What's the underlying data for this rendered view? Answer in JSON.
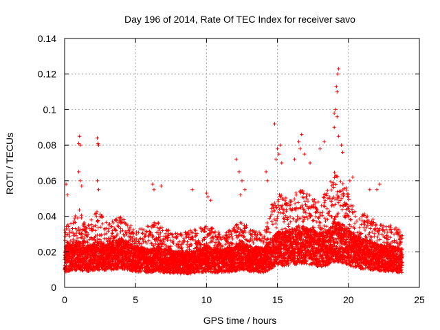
{
  "chart_data": {
    "type": "scatter",
    "title": "Day 196 of 2014, Rate Of TEC Index for receiver savo",
    "xlabel": "GPS time / hours",
    "ylabel": "ROTI / TECUs",
    "xlim": [
      0,
      25
    ],
    "ylim": [
      0,
      0.14
    ],
    "xticks": [
      0,
      5,
      10,
      15,
      20,
      25
    ],
    "xtick_labels": [
      "0",
      "5",
      "10",
      "15",
      "20",
      "25"
    ],
    "yticks": [
      0,
      0.02,
      0.04,
      0.06,
      0.08,
      0.1,
      0.12,
      0.14
    ],
    "ytick_labels": [
      "0",
      "0.02",
      "0.04",
      "0.06",
      "0.08",
      "0.1",
      "0.12",
      "0.14"
    ],
    "grid": true,
    "marker": "+",
    "series": [
      {
        "name": "ROTI",
        "color": "#ff0000",
        "density_profile": {
          "hours": [
            0,
            0.5,
            1.0,
            1.5,
            2.0,
            2.5,
            3.0,
            3.5,
            4.0,
            5.0,
            6.0,
            6.5,
            7.0,
            8.0,
            9.0,
            10.0,
            10.5,
            11.0,
            12.0,
            12.5,
            13.0,
            14.0,
            14.5,
            15.0,
            15.5,
            16.0,
            16.5,
            17.0,
            17.5,
            18.0,
            18.5,
            19.0,
            19.5,
            20.0,
            20.5,
            21.0,
            22.0,
            23.0,
            23.8
          ],
          "median": [
            0.016,
            0.017,
            0.018,
            0.016,
            0.017,
            0.018,
            0.017,
            0.018,
            0.019,
            0.016,
            0.015,
            0.016,
            0.015,
            0.014,
            0.014,
            0.016,
            0.015,
            0.015,
            0.016,
            0.018,
            0.016,
            0.015,
            0.018,
            0.022,
            0.022,
            0.023,
            0.024,
            0.024,
            0.022,
            0.021,
            0.022,
            0.026,
            0.025,
            0.023,
            0.02,
            0.019,
            0.017,
            0.016,
            0.015
          ],
          "upper": [
            0.035,
            0.036,
            0.045,
            0.034,
            0.04,
            0.045,
            0.036,
            0.038,
            0.04,
            0.032,
            0.035,
            0.038,
            0.034,
            0.03,
            0.033,
            0.035,
            0.034,
            0.03,
            0.034,
            0.04,
            0.034,
            0.03,
            0.045,
            0.055,
            0.05,
            0.052,
            0.055,
            0.054,
            0.05,
            0.048,
            0.055,
            0.065,
            0.06,
            0.055,
            0.045,
            0.042,
            0.038,
            0.035,
            0.032
          ]
        },
        "outliers": [
          {
            "x": 0.1,
            "y": 0.058
          },
          {
            "x": 0.2,
            "y": 0.052
          },
          {
            "x": 1.0,
            "y": 0.081
          },
          {
            "x": 1.05,
            "y": 0.085
          },
          {
            "x": 1.1,
            "y": 0.08
          },
          {
            "x": 1.0,
            "y": 0.065
          },
          {
            "x": 1.1,
            "y": 0.06
          },
          {
            "x": 1.2,
            "y": 0.057
          },
          {
            "x": 2.3,
            "y": 0.084
          },
          {
            "x": 2.35,
            "y": 0.081
          },
          {
            "x": 2.4,
            "y": 0.08
          },
          {
            "x": 2.3,
            "y": 0.06
          },
          {
            "x": 2.4,
            "y": 0.055
          },
          {
            "x": 6.2,
            "y": 0.058
          },
          {
            "x": 6.3,
            "y": 0.055
          },
          {
            "x": 6.8,
            "y": 0.057
          },
          {
            "x": 9.0,
            "y": 0.055
          },
          {
            "x": 10.0,
            "y": 0.053
          },
          {
            "x": 10.1,
            "y": 0.051
          },
          {
            "x": 10.3,
            "y": 0.049
          },
          {
            "x": 12.1,
            "y": 0.072
          },
          {
            "x": 12.3,
            "y": 0.065
          },
          {
            "x": 12.5,
            "y": 0.06
          },
          {
            "x": 12.7,
            "y": 0.055
          },
          {
            "x": 12.4,
            "y": 0.052
          },
          {
            "x": 14.2,
            "y": 0.065
          },
          {
            "x": 14.3,
            "y": 0.06
          },
          {
            "x": 14.8,
            "y": 0.092
          },
          {
            "x": 15.0,
            "y": 0.078
          },
          {
            "x": 15.2,
            "y": 0.08
          },
          {
            "x": 15.1,
            "y": 0.075
          },
          {
            "x": 14.9,
            "y": 0.072
          },
          {
            "x": 15.3,
            "y": 0.07
          },
          {
            "x": 16.2,
            "y": 0.072
          },
          {
            "x": 16.5,
            "y": 0.082
          },
          {
            "x": 16.7,
            "y": 0.086
          },
          {
            "x": 16.6,
            "y": 0.078
          },
          {
            "x": 16.9,
            "y": 0.075
          },
          {
            "x": 17.3,
            "y": 0.07
          },
          {
            "x": 18.0,
            "y": 0.078
          },
          {
            "x": 18.3,
            "y": 0.082
          },
          {
            "x": 19.0,
            "y": 0.098
          },
          {
            "x": 19.1,
            "y": 0.1
          },
          {
            "x": 19.2,
            "y": 0.11
          },
          {
            "x": 19.25,
            "y": 0.12
          },
          {
            "x": 19.3,
            "y": 0.123
          },
          {
            "x": 19.15,
            "y": 0.113
          },
          {
            "x": 19.2,
            "y": 0.096
          },
          {
            "x": 19.0,
            "y": 0.09
          },
          {
            "x": 19.3,
            "y": 0.085
          },
          {
            "x": 19.5,
            "y": 0.08
          },
          {
            "x": 19.6,
            "y": 0.076
          },
          {
            "x": 20.1,
            "y": 0.06
          },
          {
            "x": 20.3,
            "y": 0.062
          },
          {
            "x": 21.5,
            "y": 0.055
          },
          {
            "x": 22.0,
            "y": 0.055
          },
          {
            "x": 22.2,
            "y": 0.058
          }
        ]
      }
    ]
  }
}
